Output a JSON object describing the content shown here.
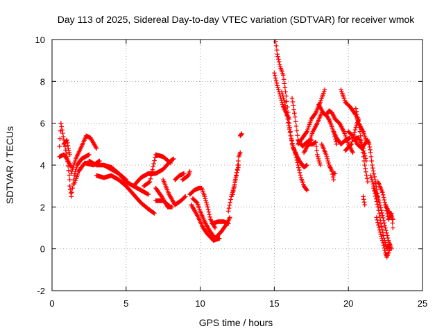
{
  "chart_data": {
    "type": "scatter",
    "title": "Day 113 of 2025, Sidereal Day-to-day VTEC variation (SDTVAR) for receiver wmok",
    "xlabel": "GPS time / hours",
    "ylabel": "SDTVAR / TECUs",
    "xlim": [
      0,
      25
    ],
    "ylim": [
      -2,
      10
    ],
    "xticks": [
      0,
      5,
      10,
      15,
      20,
      25
    ],
    "yticks": [
      -2,
      0,
      2,
      4,
      6,
      8,
      10
    ],
    "grid": true,
    "marker": "+",
    "color": "#ff0000",
    "series": [
      {
        "name": "SDTVAR",
        "tracks": [
          [
            [
              0.5,
              4.9
            ],
            [
              0.6,
              6.0
            ],
            [
              0.8,
              5.2
            ],
            [
              1.0,
              4.4
            ],
            [
              1.2,
              3.3
            ]
          ],
          [
            [
              0.5,
              4.4
            ],
            [
              0.8,
              4.5
            ],
            [
              1.0,
              4.3
            ],
            [
              1.3,
              3.9
            ]
          ],
          [
            [
              1.2,
              3.0
            ],
            [
              1.3,
              2.5
            ],
            [
              1.5,
              3.5
            ],
            [
              1.7,
              4.0
            ],
            [
              2.0,
              4.3
            ],
            [
              2.5,
              4.5
            ]
          ],
          [
            [
              1.3,
              3.6
            ],
            [
              1.6,
              4.3
            ],
            [
              2.0,
              4.9
            ],
            [
              2.3,
              5.4
            ],
            [
              2.6,
              5.3
            ],
            [
              3.0,
              4.8
            ]
          ],
          [
            [
              1.5,
              3.1
            ],
            [
              1.8,
              3.7
            ],
            [
              2.2,
              4.1
            ],
            [
              2.8,
              4.0
            ],
            [
              3.2,
              4.2
            ]
          ],
          [
            [
              2.5,
              4.2
            ],
            [
              3.0,
              4.0
            ],
            [
              3.5,
              4.0
            ],
            [
              4.0,
              3.9
            ],
            [
              4.5,
              3.6
            ],
            [
              5.0,
              3.2
            ],
            [
              5.5,
              3.0
            ],
            [
              6.0,
              2.8
            ],
            [
              6.5,
              2.6
            ]
          ],
          [
            [
              3.0,
              3.5
            ],
            [
              3.5,
              3.4
            ],
            [
              4.0,
              3.5
            ],
            [
              4.5,
              3.3
            ],
            [
              5.0,
              3.0
            ],
            [
              5.5,
              2.6
            ],
            [
              6.0,
              2.2
            ],
            [
              6.5,
              1.9
            ],
            [
              6.9,
              1.7
            ]
          ],
          [
            [
              3.5,
              4.0
            ],
            [
              4.0,
              3.8
            ],
            [
              4.5,
              3.6
            ],
            [
              5.0,
              3.3
            ]
          ],
          [
            [
              5.5,
              3.0
            ],
            [
              6.0,
              3.4
            ],
            [
              6.5,
              3.6
            ],
            [
              7.0,
              3.6
            ],
            [
              7.5,
              3.8
            ],
            [
              8.0,
              4.2
            ],
            [
              8.2,
              4.3
            ]
          ],
          [
            [
              6.2,
              3.0
            ],
            [
              6.6,
              3.2
            ],
            [
              7.0,
              4.5
            ],
            [
              7.5,
              4.4
            ],
            [
              8.0,
              4.1
            ]
          ],
          [
            [
              7.0,
              2.9
            ],
            [
              7.4,
              2.5
            ],
            [
              7.8,
              2.0
            ],
            [
              8.1,
              2.0
            ]
          ],
          [
            [
              7.5,
              3.3
            ],
            [
              7.9,
              2.6
            ],
            [
              8.3,
              2.1
            ],
            [
              8.7,
              2.3
            ],
            [
              9.0,
              2.5
            ]
          ],
          [
            [
              7.0,
              2.3
            ],
            [
              7.5,
              2.3
            ],
            [
              8.0,
              2.0
            ]
          ],
          [
            [
              8.3,
              3.3
            ],
            [
              8.6,
              3.5
            ],
            [
              8.9,
              3.6
            ]
          ],
          [
            [
              9.3,
              2.6
            ],
            [
              9.6,
              2.8
            ],
            [
              9.9,
              2.9
            ],
            [
              10.1,
              2.9
            ],
            [
              10.3,
              2.5
            ],
            [
              10.5,
              2.0
            ],
            [
              10.7,
              1.4
            ],
            [
              11.0,
              1.0
            ]
          ],
          [
            [
              9.5,
              2.4
            ],
            [
              9.8,
              2.2
            ],
            [
              10.0,
              1.8
            ],
            [
              10.3,
              1.3
            ],
            [
              10.6,
              0.9
            ],
            [
              11.0,
              0.5
            ],
            [
              11.4,
              0.8
            ],
            [
              11.8,
              1.2
            ],
            [
              12.0,
              1.5
            ]
          ],
          [
            [
              9.4,
              2.1
            ],
            [
              9.8,
              1.6
            ],
            [
              10.2,
              1.0
            ],
            [
              10.5,
              0.7
            ],
            [
              10.9,
              0.4
            ],
            [
              11.3,
              0.5
            ]
          ],
          [
            [
              10.8,
              1.2
            ],
            [
              11.2,
              1.3
            ],
            [
              11.6,
              1.3
            ],
            [
              11.9,
              1.2
            ]
          ],
          [
            [
              11.9,
              1.8
            ],
            [
              12.1,
              2.5
            ],
            [
              12.3,
              3.0
            ],
            [
              12.5,
              3.8
            ],
            [
              12.6,
              4.4
            ],
            [
              12.7,
              4.6
            ]
          ],
          [
            [
              12.2,
              2.6
            ],
            [
              12.4,
              3.4
            ],
            [
              12.6,
              4.0
            ]
          ],
          [
            [
              12.7,
              5.4
            ],
            [
              12.8,
              5.5
            ]
          ],
          [
            [
              15.1,
              9.9
            ],
            [
              15.2,
              9.3
            ],
            [
              15.4,
              8.7
            ],
            [
              15.6,
              8.3
            ],
            [
              15.8,
              7.3
            ],
            [
              16.0,
              6.0
            ],
            [
              16.2,
              5.0
            ],
            [
              16.4,
              4.6
            ],
            [
              16.6,
              4.0
            ],
            [
              16.8,
              3.4
            ],
            [
              17.0,
              3.0
            ],
            [
              17.2,
              2.8
            ]
          ],
          [
            [
              15.0,
              8.4
            ],
            [
              15.2,
              7.8
            ],
            [
              15.4,
              7.3
            ],
            [
              15.6,
              6.8
            ],
            [
              15.8,
              6.5
            ],
            [
              16.0,
              6.2
            ]
          ],
          [
            [
              15.5,
              7.5
            ],
            [
              15.7,
              7.0
            ],
            [
              15.9,
              6.2
            ],
            [
              16.1,
              5.4
            ],
            [
              16.3,
              4.8
            ],
            [
              16.5,
              4.5
            ]
          ],
          [
            [
              16.2,
              7.2
            ],
            [
              16.4,
              6.3
            ],
            [
              16.6,
              5.2
            ],
            [
              16.9,
              4.9
            ],
            [
              17.2,
              5.1
            ],
            [
              17.5,
              5.2
            ]
          ],
          [
            [
              16.4,
              4.6
            ],
            [
              16.7,
              4.2
            ],
            [
              17.0,
              3.9
            ],
            [
              17.2,
              4.0
            ]
          ],
          [
            [
              16.6,
              5.0
            ],
            [
              16.9,
              5.3
            ],
            [
              17.2,
              5.6
            ],
            [
              17.5,
              6.2
            ],
            [
              17.8,
              6.5
            ],
            [
              18.1,
              7.0
            ],
            [
              18.4,
              7.6
            ]
          ],
          [
            [
              17.0,
              4.6
            ],
            [
              17.3,
              5.0
            ],
            [
              17.6,
              5.6
            ],
            [
              17.9,
              6.0
            ],
            [
              18.2,
              6.5
            ]
          ],
          [
            [
              17.3,
              5.0
            ],
            [
              17.6,
              5.0
            ],
            [
              17.8,
              5.1
            ],
            [
              17.9,
              4.5
            ],
            [
              18.1,
              4.0
            ]
          ],
          [
            [
              18.0,
              6.9
            ],
            [
              18.3,
              6.5
            ],
            [
              18.6,
              6.3
            ],
            [
              18.8,
              6.0
            ],
            [
              19.0,
              5.6
            ],
            [
              19.2,
              5.0
            ]
          ],
          [
            [
              18.2,
              5.0
            ],
            [
              18.5,
              4.5
            ],
            [
              18.7,
              4.0
            ],
            [
              18.9,
              3.7
            ],
            [
              19.0,
              3.3
            ]
          ],
          [
            [
              18.5,
              6.4
            ],
            [
              18.7,
              6.6
            ],
            [
              18.9,
              6.5
            ],
            [
              19.1,
              6.2
            ],
            [
              19.4,
              6.0
            ],
            [
              19.7,
              5.6
            ],
            [
              20.0,
              5.0
            ],
            [
              20.3,
              4.6
            ]
          ],
          [
            [
              19.0,
              5.6
            ],
            [
              19.2,
              5.3
            ],
            [
              19.5,
              5.0
            ],
            [
              19.8,
              5.2
            ],
            [
              20.1,
              5.3
            ]
          ],
          [
            [
              19.5,
              7.6
            ],
            [
              19.8,
              7.0
            ],
            [
              20.1,
              6.8
            ],
            [
              20.3,
              6.6
            ],
            [
              20.5,
              6.4
            ],
            [
              20.7,
              6.0
            ],
            [
              21.0,
              5.6
            ],
            [
              21.2,
              5.2
            ]
          ],
          [
            [
              19.8,
              4.7
            ],
            [
              20.2,
              5.0
            ],
            [
              20.5,
              5.8
            ],
            [
              20.7,
              6.2
            ]
          ],
          [
            [
              20.5,
              6.7
            ],
            [
              20.7,
              6.0
            ],
            [
              20.9,
              5.0
            ],
            [
              21.1,
              4.0
            ],
            [
              21.3,
              3.2
            ]
          ],
          [
            [
              20.5,
              5.3
            ],
            [
              20.7,
              5.3
            ],
            [
              21.0,
              4.8
            ],
            [
              21.2,
              4.2
            ]
          ],
          [
            [
              20.0,
              5.6
            ],
            [
              20.3,
              5.4
            ],
            [
              20.6,
              5.0
            ],
            [
              20.9,
              4.8
            ],
            [
              21.1,
              5.0
            ],
            [
              21.3,
              5.2
            ],
            [
              21.4,
              5.0
            ],
            [
              21.5,
              4.6
            ],
            [
              21.6,
              4.0
            ],
            [
              21.8,
              3.3
            ],
            [
              22.0,
              2.5
            ]
          ],
          [
            [
              21.0,
              2.5
            ],
            [
              21.1,
              2.1
            ]
          ],
          [
            [
              21.5,
              3.5
            ],
            [
              21.8,
              2.8
            ],
            [
              22.1,
              2.2
            ],
            [
              22.3,
              1.6
            ],
            [
              22.5,
              1.0
            ],
            [
              22.7,
              0.4
            ],
            [
              22.9,
              0.0
            ]
          ],
          [
            [
              21.7,
              2.9
            ],
            [
              22.0,
              2.0
            ],
            [
              22.2,
              1.2
            ],
            [
              22.4,
              0.5
            ],
            [
              22.6,
              0.0
            ],
            [
              22.8,
              0.2
            ]
          ],
          [
            [
              21.9,
              1.5
            ],
            [
              22.1,
              0.9
            ],
            [
              22.3,
              0.4
            ],
            [
              22.5,
              -0.2
            ],
            [
              22.6,
              -0.4
            ],
            [
              22.8,
              0.0
            ]
          ],
          [
            [
              22.0,
              3.2
            ],
            [
              22.3,
              2.7
            ],
            [
              22.5,
              2.1
            ],
            [
              22.7,
              1.4
            ],
            [
              22.9,
              1.7
            ],
            [
              23.0,
              1.0
            ]
          ],
          [
            [
              22.5,
              2.1
            ],
            [
              22.7,
              1.8
            ],
            [
              22.9,
              1.6
            ],
            [
              23.0,
              1.4
            ]
          ],
          [
            [
              19.0,
              3.6
            ],
            [
              19.1,
              3.6
            ]
          ],
          [
            [
              8.8,
              3.3
            ],
            [
              9.2,
              3.5
            ],
            [
              9.3,
              3.7
            ]
          ],
          [
            [
              0.8,
              5.0
            ],
            [
              1.0,
              5.2
            ],
            [
              1.1,
              4.8
            ],
            [
              1.2,
              4.5
            ]
          ]
        ]
      }
    ]
  }
}
